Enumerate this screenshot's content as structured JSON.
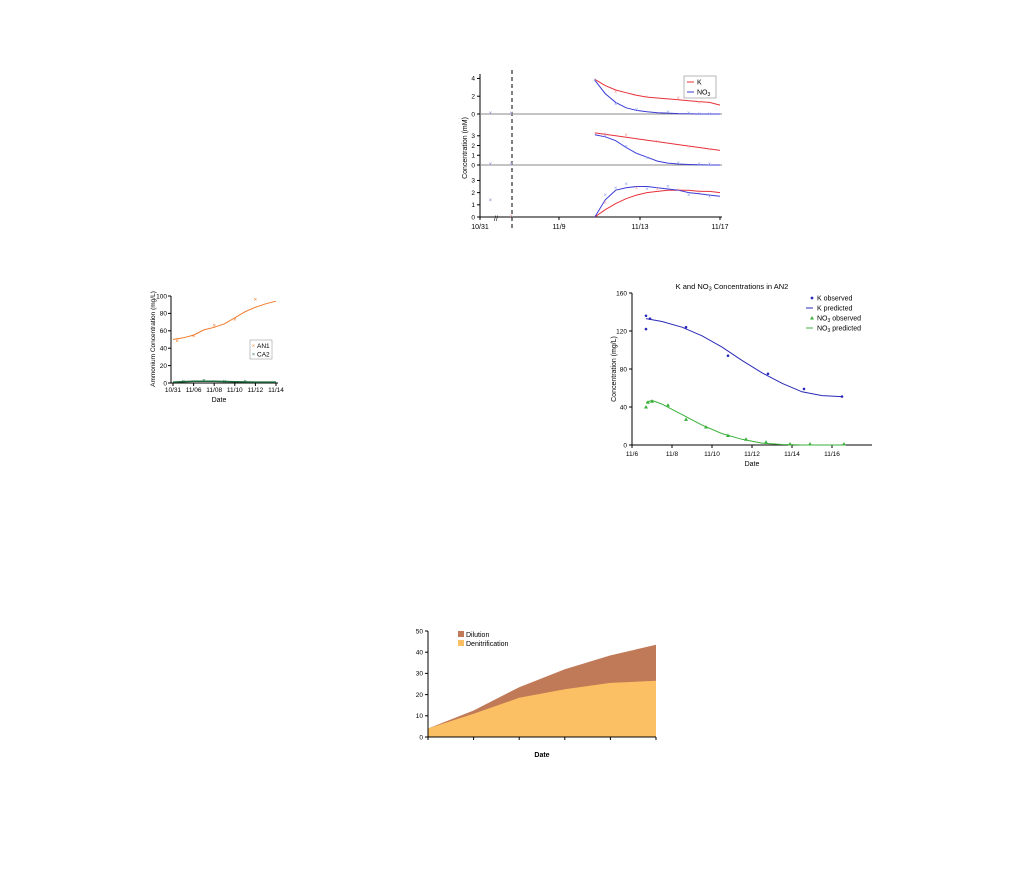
{
  "chart_data": [
    {
      "id": "top",
      "type": "line",
      "title": "",
      "ylabel": "Concentration (mM)",
      "x_tick_labels": [
        "10/31",
        "11/9",
        "11/13",
        "11/17"
      ],
      "break_mark": "//",
      "legend": [
        "K",
        "NO3"
      ],
      "colors": {
        "K": "#e8303a",
        "NO3": "#3b3bd6",
        "K_marker": "#ee9a9a",
        "NO3_marker": "#8fa2ee"
      },
      "panels": [
        {
          "yticks": [
            "4",
            "2",
            "0"
          ],
          "ylim": [
            0,
            4.5
          ],
          "K_pred": [
            [
              11,
              3.9
            ],
            [
              12,
              3.2
            ],
            [
              13,
              2.7
            ],
            [
              14,
              2.4
            ],
            [
              15,
              2.1
            ],
            [
              16,
              1.9
            ],
            [
              17,
              1.8
            ],
            [
              18,
              1.7
            ],
            [
              19,
              1.6
            ],
            [
              20,
              1.5
            ],
            [
              21,
              1.4
            ],
            [
              22,
              1.3
            ],
            [
              23,
              1.0
            ]
          ],
          "NO3_pred": [
            [
              11,
              3.8
            ],
            [
              12,
              2.3
            ],
            [
              13,
              1.3
            ],
            [
              14,
              0.7
            ],
            [
              15,
              0.4
            ],
            [
              16,
              0.25
            ],
            [
              17,
              0.15
            ],
            [
              18,
              0.1
            ],
            [
              19,
              0.05
            ],
            [
              20,
              0.02
            ],
            [
              21,
              0.0
            ],
            [
              22,
              0.0
            ],
            [
              23,
              0.0
            ]
          ],
          "K_obs": [
            [
              1,
              0.1
            ],
            [
              3,
              0.1
            ],
            [
              13,
              2.5
            ],
            [
              16,
              1.9
            ],
            [
              19,
              1.8
            ],
            [
              21,
              1.3
            ]
          ],
          "NO3_obs": [
            [
              1,
              0.1
            ],
            [
              3,
              0.1
            ],
            [
              11,
              3.8
            ],
            [
              13,
              1.1
            ],
            [
              15,
              0.5
            ],
            [
              18,
              0.2
            ],
            [
              20,
              0.1
            ],
            [
              21,
              0.0
            ],
            [
              22,
              0.0
            ]
          ]
        },
        {
          "yticks": [
            "3",
            "2",
            "1",
            "0"
          ],
          "ylim": [
            0,
            3.8
          ],
          "K_pred": [
            [
              11,
              3.3
            ],
            [
              13,
              3.0
            ],
            [
              15,
              2.7
            ],
            [
              17,
              2.4
            ],
            [
              19,
              2.1
            ],
            [
              21,
              1.8
            ],
            [
              23,
              1.5
            ]
          ],
          "NO3_pred": [
            [
              11,
              3.1
            ],
            [
              12,
              2.9
            ],
            [
              13,
              2.5
            ],
            [
              14,
              1.8
            ],
            [
              15,
              1.2
            ],
            [
              16,
              0.8
            ],
            [
              17,
              0.4
            ],
            [
              18,
              0.2
            ],
            [
              19,
              0.1
            ],
            [
              20,
              0.05
            ],
            [
              21,
              0.02
            ],
            [
              22,
              0.0
            ],
            [
              23,
              0.0
            ]
          ],
          "K_obs": [
            [
              1,
              0.1
            ],
            [
              3,
              0.1
            ],
            [
              12,
              3.2
            ],
            [
              14,
              3.1
            ],
            [
              17,
              2.4
            ],
            [
              20,
              1.9
            ],
            [
              22,
              1.6
            ]
          ],
          "NO3_obs": [
            [
              1,
              0.1
            ],
            [
              3,
              0.1
            ],
            [
              12,
              3.0
            ],
            [
              14,
              1.9
            ],
            [
              16,
              0.7
            ],
            [
              19,
              0.2
            ],
            [
              21,
              0.1
            ],
            [
              22,
              0.1
            ]
          ]
        },
        {
          "yticks": [
            "3",
            "2",
            "1",
            "0"
          ],
          "ylim": [
            0,
            3.2
          ],
          "K_pred": [
            [
              11,
              0.0
            ],
            [
              12,
              0.6
            ],
            [
              13,
              1.1
            ],
            [
              14,
              1.5
            ],
            [
              15,
              1.8
            ],
            [
              16,
              2.0
            ],
            [
              17,
              2.1
            ],
            [
              18,
              2.2
            ],
            [
              19,
              2.2
            ],
            [
              20,
              2.2
            ],
            [
              21,
              2.1
            ],
            [
              22,
              2.1
            ],
            [
              23,
              2.0
            ]
          ],
          "NO3_pred": [
            [
              11,
              0.0
            ],
            [
              12,
              1.4
            ],
            [
              13,
              2.2
            ],
            [
              14,
              2.4
            ],
            [
              15,
              2.5
            ],
            [
              16,
              2.5
            ],
            [
              17,
              2.4
            ],
            [
              18,
              2.3
            ],
            [
              19,
              2.2
            ],
            [
              20,
              2.0
            ],
            [
              21,
              1.9
            ],
            [
              22,
              1.8
            ],
            [
              23,
              1.7
            ]
          ],
          "K_obs": [
            [
              1,
              1.4
            ],
            [
              3,
              0.1
            ],
            [
              12,
              1.2
            ],
            [
              15,
              2.4
            ],
            [
              17,
              2.3
            ],
            [
              19,
              2.2
            ],
            [
              21,
              2.1
            ]
          ],
          "NO3_obs": [
            [
              1,
              1.4
            ],
            [
              12,
              1.8
            ],
            [
              13,
              2.4
            ],
            [
              14,
              2.7
            ],
            [
              16,
              2.3
            ],
            [
              18,
              2.5
            ],
            [
              20,
              1.8
            ],
            [
              22,
              1.7
            ]
          ]
        }
      ]
    },
    {
      "id": "left",
      "type": "line",
      "title": "",
      "xlabel": "Date",
      "ylabel": "Ammonium Concentration (mg/L)",
      "x": [
        "10/31",
        "11/06",
        "11/08",
        "11/10",
        "11/12",
        "11/14"
      ],
      "yticks": [
        "100",
        "80",
        "60",
        "40",
        "20",
        "0"
      ],
      "ylim": [
        0,
        100
      ],
      "legend": [
        "AN1",
        "CA2"
      ],
      "colors": {
        "AN1": "#f07a2a",
        "CA2": "#1a6a3a"
      },
      "series": [
        {
          "name": "AN1",
          "pred": [
            [
              0,
              50
            ],
            [
              0.5,
              52
            ],
            [
              1,
              55
            ],
            [
              1.5,
              61
            ],
            [
              2,
              64
            ],
            [
              2.5,
              68
            ],
            [
              3,
              75
            ],
            [
              3.5,
              82
            ],
            [
              4,
              87
            ],
            [
              4.5,
              91
            ],
            [
              5,
              94
            ]
          ],
          "obs": [
            [
              0.2,
              48
            ],
            [
              1,
              54
            ],
            [
              2,
              66
            ],
            [
              3,
              73
            ],
            [
              4,
              96
            ]
          ]
        },
        {
          "name": "CA2",
          "pred": [
            [
              0,
              1
            ],
            [
              1,
              2
            ],
            [
              2,
              2
            ],
            [
              3,
              1.5
            ],
            [
              4,
              1
            ],
            [
              5,
              1
            ]
          ],
          "obs": [
            [
              0.5,
              2
            ],
            [
              1.5,
              3
            ],
            [
              2.5,
              2
            ],
            [
              3.5,
              2
            ]
          ]
        }
      ]
    },
    {
      "id": "right",
      "type": "line",
      "title": "K and NO3  Concentrations in AN2",
      "xlabel": "Date",
      "ylabel": "Concentration (mg/L)",
      "x_ticks": [
        "11/6",
        "11/8",
        "11/10",
        "11/12",
        "11/14",
        "11/16"
      ],
      "xlim": [
        0,
        12
      ],
      "ylim": [
        0,
        160
      ],
      "yticks": [
        0,
        40,
        80,
        120,
        160
      ],
      "legend": [
        "K observed",
        "K predicted",
        "NO3 observed",
        "NO3 predicted"
      ],
      "colors": {
        "K": "#2a2ab8",
        "NO3": "#3ab03a"
      },
      "series": [
        {
          "name": "K observed",
          "kind": "points",
          "data": [
            [
              0.7,
              122
            ],
            [
              0.7,
              136
            ],
            [
              0.9,
              133
            ],
            [
              2.7,
              124
            ],
            [
              4.8,
              94
            ],
            [
              6.8,
              75
            ],
            [
              8.6,
              59
            ],
            [
              10.5,
              51
            ]
          ]
        },
        {
          "name": "K predicted",
          "kind": "line",
          "data": [
            [
              0.7,
              133
            ],
            [
              1.5,
              130
            ],
            [
              2.5,
              124
            ],
            [
              3.5,
              115
            ],
            [
              4.5,
              103
            ],
            [
              5.5,
              89
            ],
            [
              6.5,
              76
            ],
            [
              7.5,
              65
            ],
            [
              8.5,
              56
            ],
            [
              9.5,
              52
            ],
            [
              10.5,
              51
            ]
          ]
        },
        {
          "name": "NO3 observed",
          "kind": "points",
          "data": [
            [
              0.7,
              40
            ],
            [
              0.8,
              45
            ],
            [
              1.0,
              46
            ],
            [
              1.8,
              42
            ],
            [
              2.7,
              27
            ],
            [
              3.7,
              19
            ],
            [
              4.8,
              10
            ],
            [
              5.7,
              6
            ],
            [
              6.7,
              3
            ],
            [
              7.9,
              1
            ],
            [
              8.9,
              1
            ],
            [
              10.6,
              1
            ]
          ]
        },
        {
          "name": "NO3 predicted",
          "kind": "line",
          "data": [
            [
              0.7,
              45
            ],
            [
              1.0,
              47
            ],
            [
              1.5,
              43
            ],
            [
              2.5,
              32
            ],
            [
              3.5,
              21
            ],
            [
              4.5,
              12
            ],
            [
              5.5,
              6
            ],
            [
              6.5,
              2
            ],
            [
              7.5,
              0.5
            ],
            [
              8.5,
              0
            ],
            [
              10.5,
              0
            ]
          ]
        }
      ]
    },
    {
      "id": "bottom",
      "type": "area",
      "title": "",
      "xlabel": "Date",
      "ylim": [
        0,
        50
      ],
      "yticks": [
        0,
        10,
        20,
        30,
        40,
        50
      ],
      "x": [
        0,
        1,
        2,
        3,
        4,
        5
      ],
      "legend": [
        "Dilution",
        "Denitrification"
      ],
      "colors": {
        "Dilution": "#c07a58",
        "Denitrification": "#fcc064"
      },
      "series": [
        {
          "name": "Denitrification",
          "values": [
            4,
            11,
            18.5,
            22.5,
            25.5,
            26.5
          ]
        },
        {
          "name": "Dilution",
          "values": [
            0,
            1.5,
            5,
            9.5,
            13,
            17
          ]
        }
      ]
    }
  ]
}
